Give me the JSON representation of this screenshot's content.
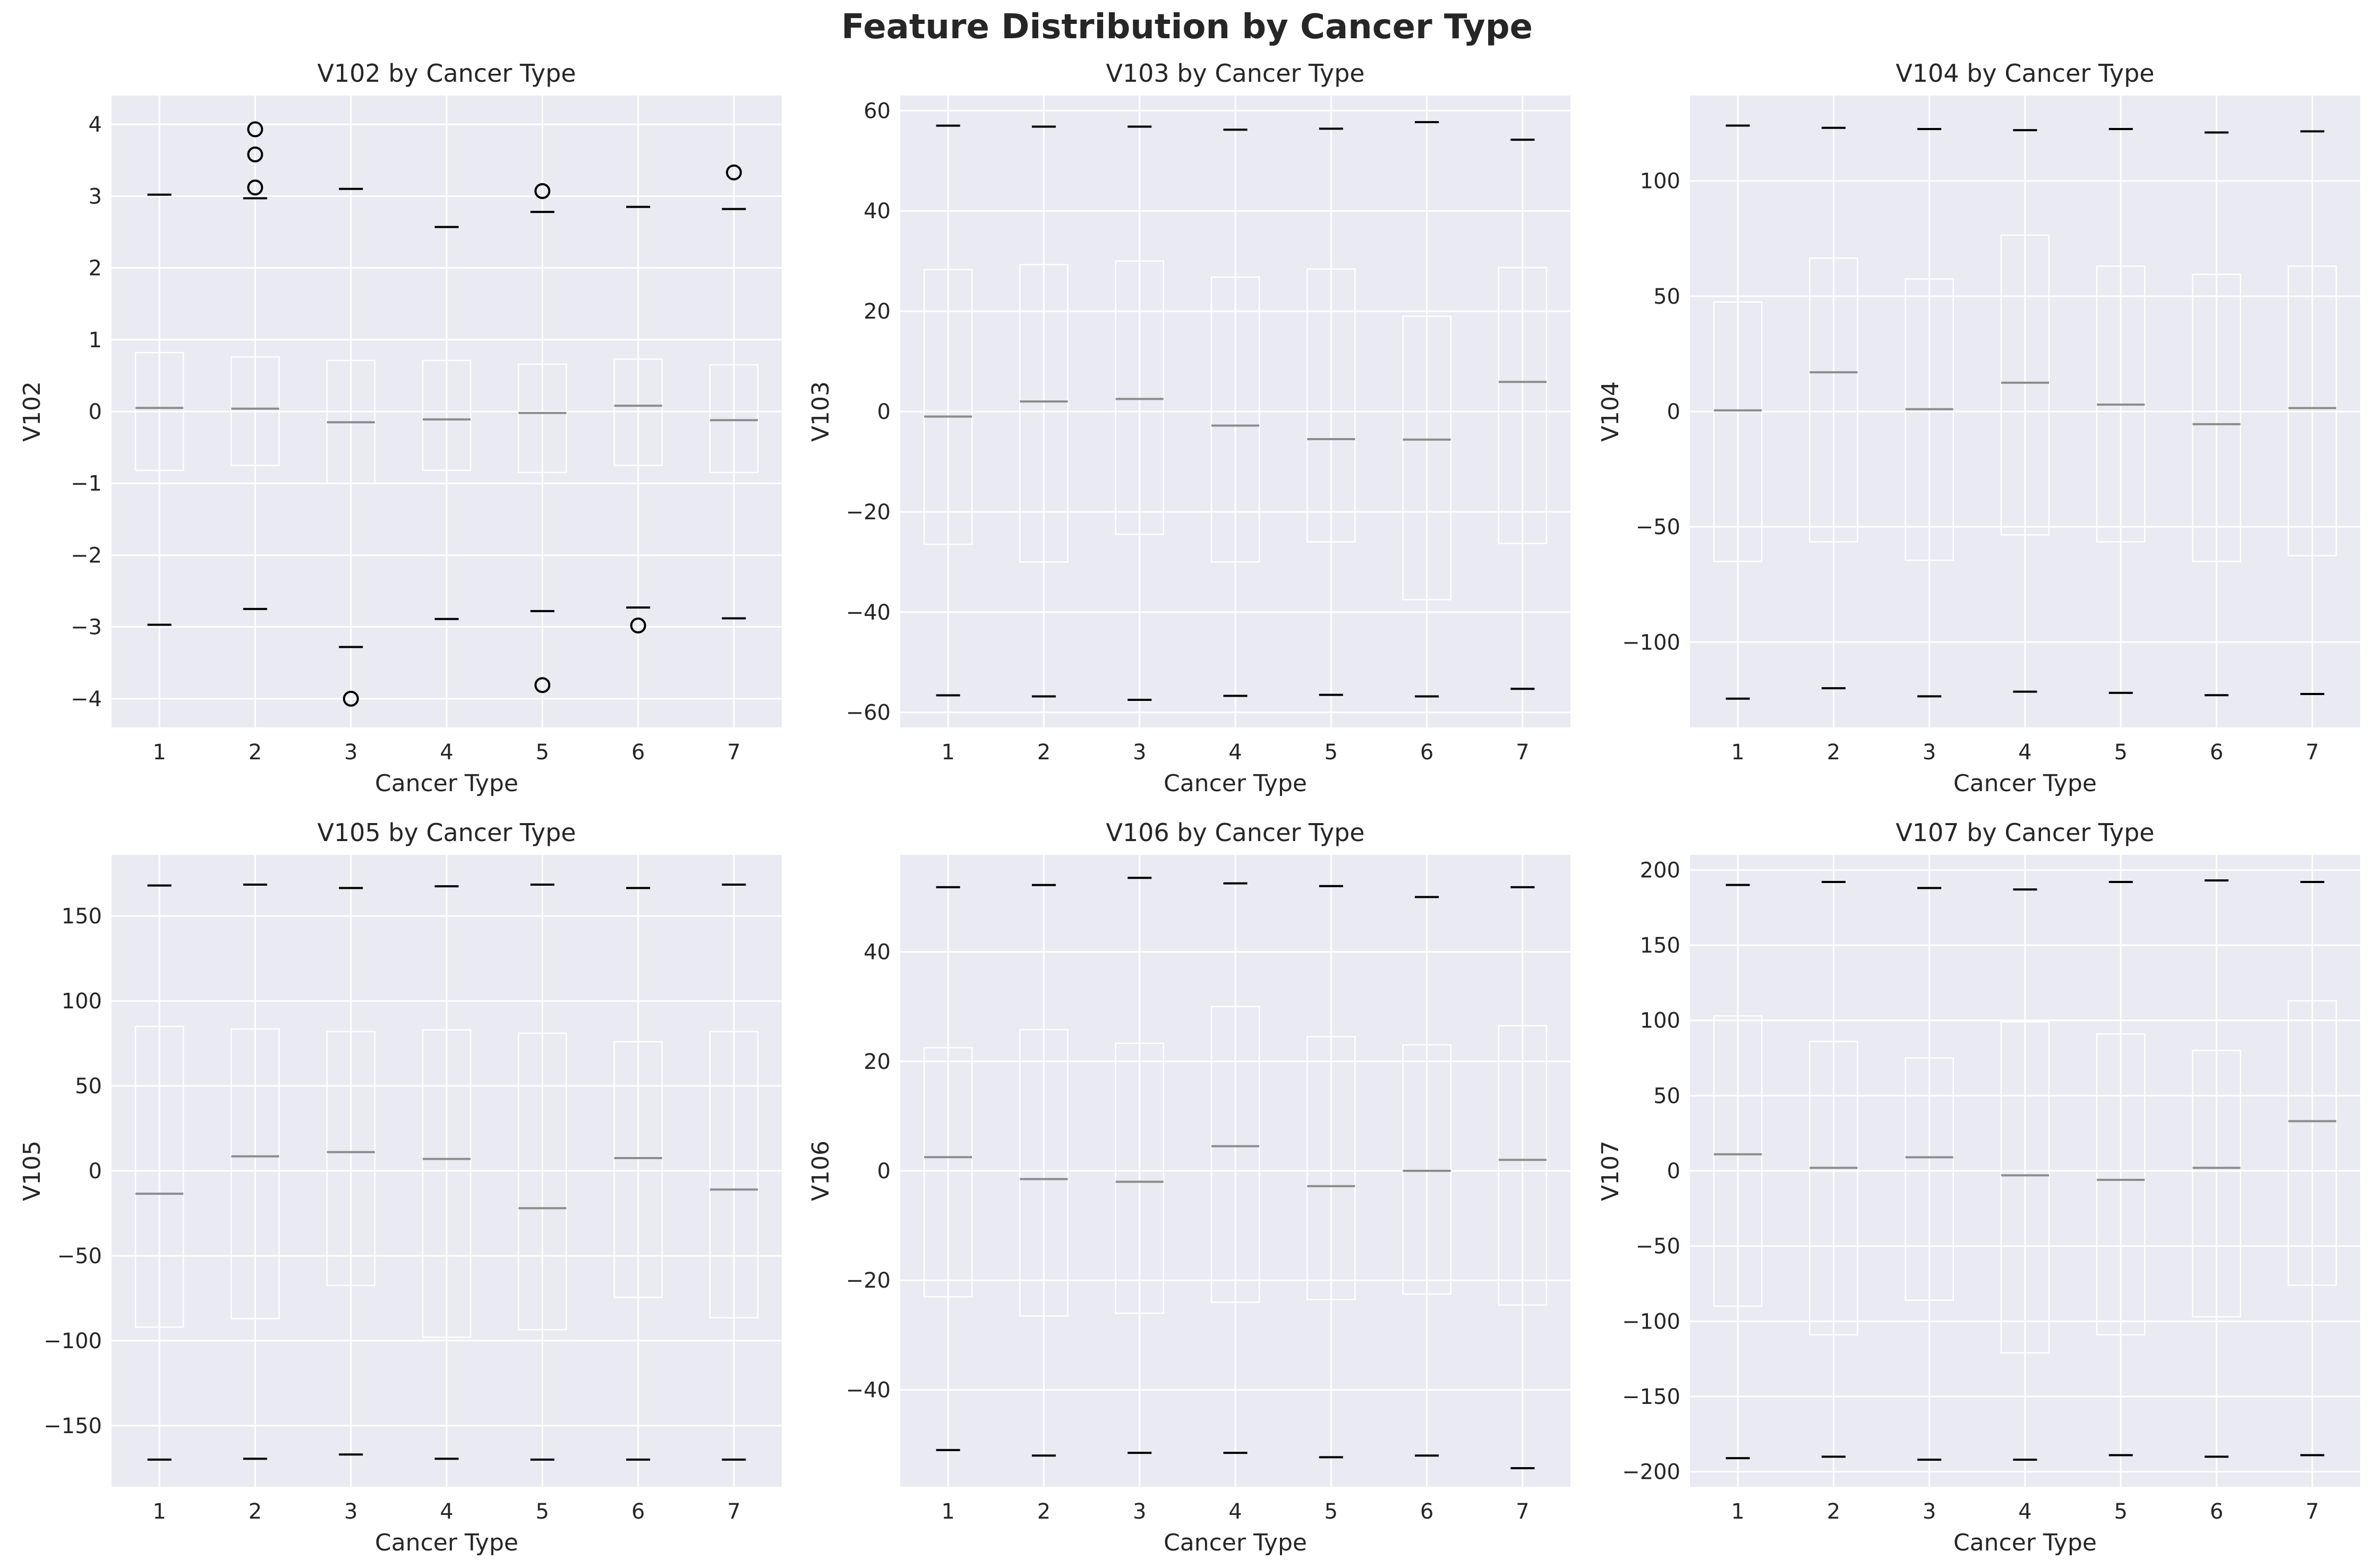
{
  "figure": {
    "suptitle": "Feature Distribution by Cancer Type",
    "style": {
      "background": "#ffffff",
      "plot_bg": "#eaeaf2",
      "grid": "#ffffff",
      "text": "#262626",
      "box": "#ffffff",
      "median": "#8c8c8c",
      "cap": "#000000",
      "outlier_edge": "#000000"
    }
  },
  "chart_data": [
    {
      "type": "box",
      "title": "V102 by Cancer Type",
      "xlabel": "Cancer Type",
      "ylabel": "V102",
      "categories": [
        "1",
        "2",
        "3",
        "4",
        "5",
        "6",
        "7"
      ],
      "ylim": [
        -4.4,
        4.4
      ],
      "yticks": [
        -4,
        -3,
        -2,
        -1,
        0,
        1,
        2,
        3,
        4
      ],
      "ytick_labels": [
        "−4",
        "−3",
        "−2",
        "−1",
        "0",
        "1",
        "2",
        "3",
        "4"
      ],
      "grid": true,
      "boxes": [
        {
          "q1": -0.82,
          "median": 0.05,
          "q3": 0.82,
          "whisker_low": -2.97,
          "whisker_high": 3.02,
          "outliers": []
        },
        {
          "q1": -0.75,
          "median": 0.04,
          "q3": 0.76,
          "whisker_low": -2.75,
          "whisker_high": 2.97,
          "outliers": [
            3.93,
            3.58,
            3.12
          ]
        },
        {
          "q1": -1.0,
          "median": -0.15,
          "q3": 0.71,
          "whisker_low": -3.28,
          "whisker_high": 3.1,
          "outliers": [
            -4.0
          ]
        },
        {
          "q1": -0.82,
          "median": -0.11,
          "q3": 0.71,
          "whisker_low": -2.89,
          "whisker_high": 2.57,
          "outliers": []
        },
        {
          "q1": -0.85,
          "median": -0.02,
          "q3": 0.66,
          "whisker_low": -2.78,
          "whisker_high": 2.78,
          "outliers": [
            3.07,
            -3.81
          ]
        },
        {
          "q1": -0.75,
          "median": 0.08,
          "q3": 0.73,
          "whisker_low": -2.73,
          "whisker_high": 2.85,
          "outliers": [
            -2.98
          ]
        },
        {
          "q1": -0.85,
          "median": -0.12,
          "q3": 0.65,
          "whisker_low": -2.88,
          "whisker_high": 2.82,
          "outliers": [
            3.33
          ]
        }
      ]
    },
    {
      "type": "box",
      "title": "V103 by Cancer Type",
      "xlabel": "Cancer Type",
      "ylabel": "V103",
      "categories": [
        "1",
        "2",
        "3",
        "4",
        "5",
        "6",
        "7"
      ],
      "ylim": [
        -63,
        63
      ],
      "yticks": [
        -60,
        -40,
        -20,
        0,
        20,
        40,
        60
      ],
      "ytick_labels": [
        "−60",
        "−40",
        "−20",
        "0",
        "20",
        "40",
        "60"
      ],
      "grid": true,
      "boxes": [
        {
          "q1": -26.5,
          "median": -1,
          "q3": 28.3,
          "whisker_low": -56.6,
          "whisker_high": 57
        },
        {
          "q1": -30,
          "median": 2,
          "q3": 29.3,
          "whisker_low": -56.8,
          "whisker_high": 56.8
        },
        {
          "q1": -24.5,
          "median": 2.5,
          "q3": 30,
          "whisker_low": -57.5,
          "whisker_high": 56.8
        },
        {
          "q1": -30,
          "median": -2.8,
          "q3": 26.8,
          "whisker_low": -56.7,
          "whisker_high": 56.2
        },
        {
          "q1": -26,
          "median": -5.5,
          "q3": 28.4,
          "whisker_low": -56.5,
          "whisker_high": 56.4
        },
        {
          "q1": -37.5,
          "median": -5.6,
          "q3": 19,
          "whisker_low": -56.8,
          "whisker_high": 57.7
        },
        {
          "q1": -26.3,
          "median": 5.9,
          "q3": 28.7,
          "whisker_low": -55.3,
          "whisker_high": 54.2
        }
      ]
    },
    {
      "type": "box",
      "title": "V104 by Cancer Type",
      "xlabel": "Cancer Type",
      "ylabel": "V104",
      "categories": [
        "1",
        "2",
        "3",
        "4",
        "5",
        "6",
        "7"
      ],
      "ylim": [
        -137,
        137
      ],
      "yticks": [
        -100,
        -50,
        0,
        50,
        100
      ],
      "ytick_labels": [
        "−100",
        "−50",
        "0",
        "50",
        "100"
      ],
      "grid": true,
      "boxes": [
        {
          "q1": -65,
          "median": 0.5,
          "q3": 47.5,
          "whisker_low": -124.5,
          "whisker_high": 124
        },
        {
          "q1": -56.5,
          "median": 17,
          "q3": 66.5,
          "whisker_low": -120,
          "whisker_high": 123
        },
        {
          "q1": -64.5,
          "median": 1,
          "q3": 57.5,
          "whisker_low": -123.5,
          "whisker_high": 122.5
        },
        {
          "q1": -53.5,
          "median": 12.5,
          "q3": 76.5,
          "whisker_low": -121.5,
          "whisker_high": 122
        },
        {
          "q1": -56.5,
          "median": 3,
          "q3": 63,
          "whisker_low": -122,
          "whisker_high": 122.5
        },
        {
          "q1": -65,
          "median": -5.5,
          "q3": 59.5,
          "whisker_low": -123,
          "whisker_high": 121
        },
        {
          "q1": -62.5,
          "median": 1.5,
          "q3": 63,
          "whisker_low": -122.5,
          "whisker_high": 121.5
        }
      ]
    },
    {
      "type": "box",
      "title": "V105 by Cancer Type",
      "xlabel": "Cancer Type",
      "ylabel": "V105",
      "categories": [
        "1",
        "2",
        "3",
        "4",
        "5",
        "6",
        "7"
      ],
      "ylim": [
        -186,
        186
      ],
      "yticks": [
        -150,
        -100,
        -50,
        0,
        50,
        100,
        150
      ],
      "ytick_labels": [
        "−150",
        "−100",
        "−50",
        "0",
        "50",
        "100",
        "150"
      ],
      "grid": true,
      "boxes": [
        {
          "q1": -92,
          "median": -13.5,
          "q3": 85,
          "whisker_low": -170,
          "whisker_high": 168
        },
        {
          "q1": -87,
          "median": 8.5,
          "q3": 83.5,
          "whisker_low": -169.5,
          "whisker_high": 168.5
        },
        {
          "q1": -67.5,
          "median": 11,
          "q3": 82,
          "whisker_low": -167,
          "whisker_high": 166.5
        },
        {
          "q1": -98,
          "median": 7,
          "q3": 83,
          "whisker_low": -169.5,
          "whisker_high": 167.5
        },
        {
          "q1": -93.5,
          "median": -22,
          "q3": 81,
          "whisker_low": -170,
          "whisker_high": 168.5
        },
        {
          "q1": -74.5,
          "median": 7.5,
          "q3": 76,
          "whisker_low": -170,
          "whisker_high": 166.5
        },
        {
          "q1": -86.5,
          "median": -11,
          "q3": 82,
          "whisker_low": -170,
          "whisker_high": 168.5
        }
      ]
    },
    {
      "type": "box",
      "title": "V106 by Cancer Type",
      "xlabel": "Cancer Type",
      "ylabel": "V106",
      "categories": [
        "1",
        "2",
        "3",
        "4",
        "5",
        "6",
        "7"
      ],
      "ylim": [
        -57.7,
        57.7
      ],
      "yticks": [
        -40,
        -20,
        0,
        20,
        40
      ],
      "ytick_labels": [
        "−40",
        "−20",
        "0",
        "20",
        "40"
      ],
      "grid": true,
      "boxes": [
        {
          "q1": -23,
          "median": 2.5,
          "q3": 22.5,
          "whisker_low": -51,
          "whisker_high": 51.8
        },
        {
          "q1": -26.5,
          "median": -1.5,
          "q3": 25.8,
          "whisker_low": -52,
          "whisker_high": 52.2
        },
        {
          "q1": -26,
          "median": -2,
          "q3": 23.3,
          "whisker_low": -51.5,
          "whisker_high": 53.5
        },
        {
          "q1": -24,
          "median": 4.5,
          "q3": 30,
          "whisker_low": -51.5,
          "whisker_high": 52.5
        },
        {
          "q1": -23.5,
          "median": -2.8,
          "q3": 24.5,
          "whisker_low": -52.3,
          "whisker_high": 52
        },
        {
          "q1": -22.5,
          "median": 0,
          "q3": 23,
          "whisker_low": -52,
          "whisker_high": 50
        },
        {
          "q1": -24.5,
          "median": 2,
          "q3": 26.5,
          "whisker_low": -54.3,
          "whisker_high": 51.8
        }
      ]
    },
    {
      "type": "box",
      "title": "V107 by Cancer Type",
      "xlabel": "Cancer Type",
      "ylabel": "V107",
      "categories": [
        "1",
        "2",
        "3",
        "4",
        "5",
        "6",
        "7"
      ],
      "ylim": [
        -210,
        210
      ],
      "yticks": [
        -200,
        -150,
        -100,
        -50,
        0,
        50,
        100,
        150,
        200
      ],
      "ytick_labels": [
        "−200",
        "−150",
        "−100",
        "−50",
        "0",
        "50",
        "100",
        "150",
        "200"
      ],
      "grid": true,
      "boxes": [
        {
          "q1": -90,
          "median": 11,
          "q3": 103,
          "whisker_low": -191,
          "whisker_high": 190
        },
        {
          "q1": -109,
          "median": 2,
          "q3": 86,
          "whisker_low": -190,
          "whisker_high": 192
        },
        {
          "q1": -86,
          "median": 9,
          "q3": 75,
          "whisker_low": -192,
          "whisker_high": 188
        },
        {
          "q1": -121,
          "median": -3,
          "q3": 99,
          "whisker_low": -192,
          "whisker_high": 187
        },
        {
          "q1": -109,
          "median": -6,
          "q3": 91,
          "whisker_low": -189,
          "whisker_high": 192
        },
        {
          "q1": -97,
          "median": 2,
          "q3": 80,
          "whisker_low": -190,
          "whisker_high": 193
        },
        {
          "q1": -76,
          "median": 33,
          "q3": 113,
          "whisker_low": -189,
          "whisker_high": 192
        }
      ]
    }
  ]
}
